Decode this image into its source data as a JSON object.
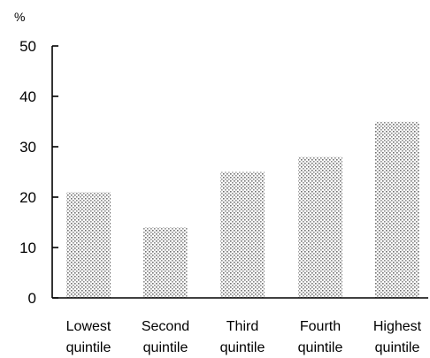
{
  "chart_data": {
    "type": "bar",
    "title": "",
    "xlabel": "",
    "ylabel": "%",
    "ylim": [
      0,
      50
    ],
    "yticks": [
      0,
      10,
      20,
      30,
      40,
      50
    ],
    "grid": false,
    "legend": "none",
    "categories": [
      [
        "Lowest",
        "quintile"
      ],
      [
        "Second",
        "quintile"
      ],
      [
        "Third",
        "quintile"
      ],
      [
        "Fourth",
        "quintile"
      ],
      [
        "Highest",
        "quintile"
      ]
    ],
    "values": [
      21,
      14,
      25,
      28,
      35
    ],
    "bar_style": "stippled-dots",
    "bar_color": "#7a7a7a"
  }
}
